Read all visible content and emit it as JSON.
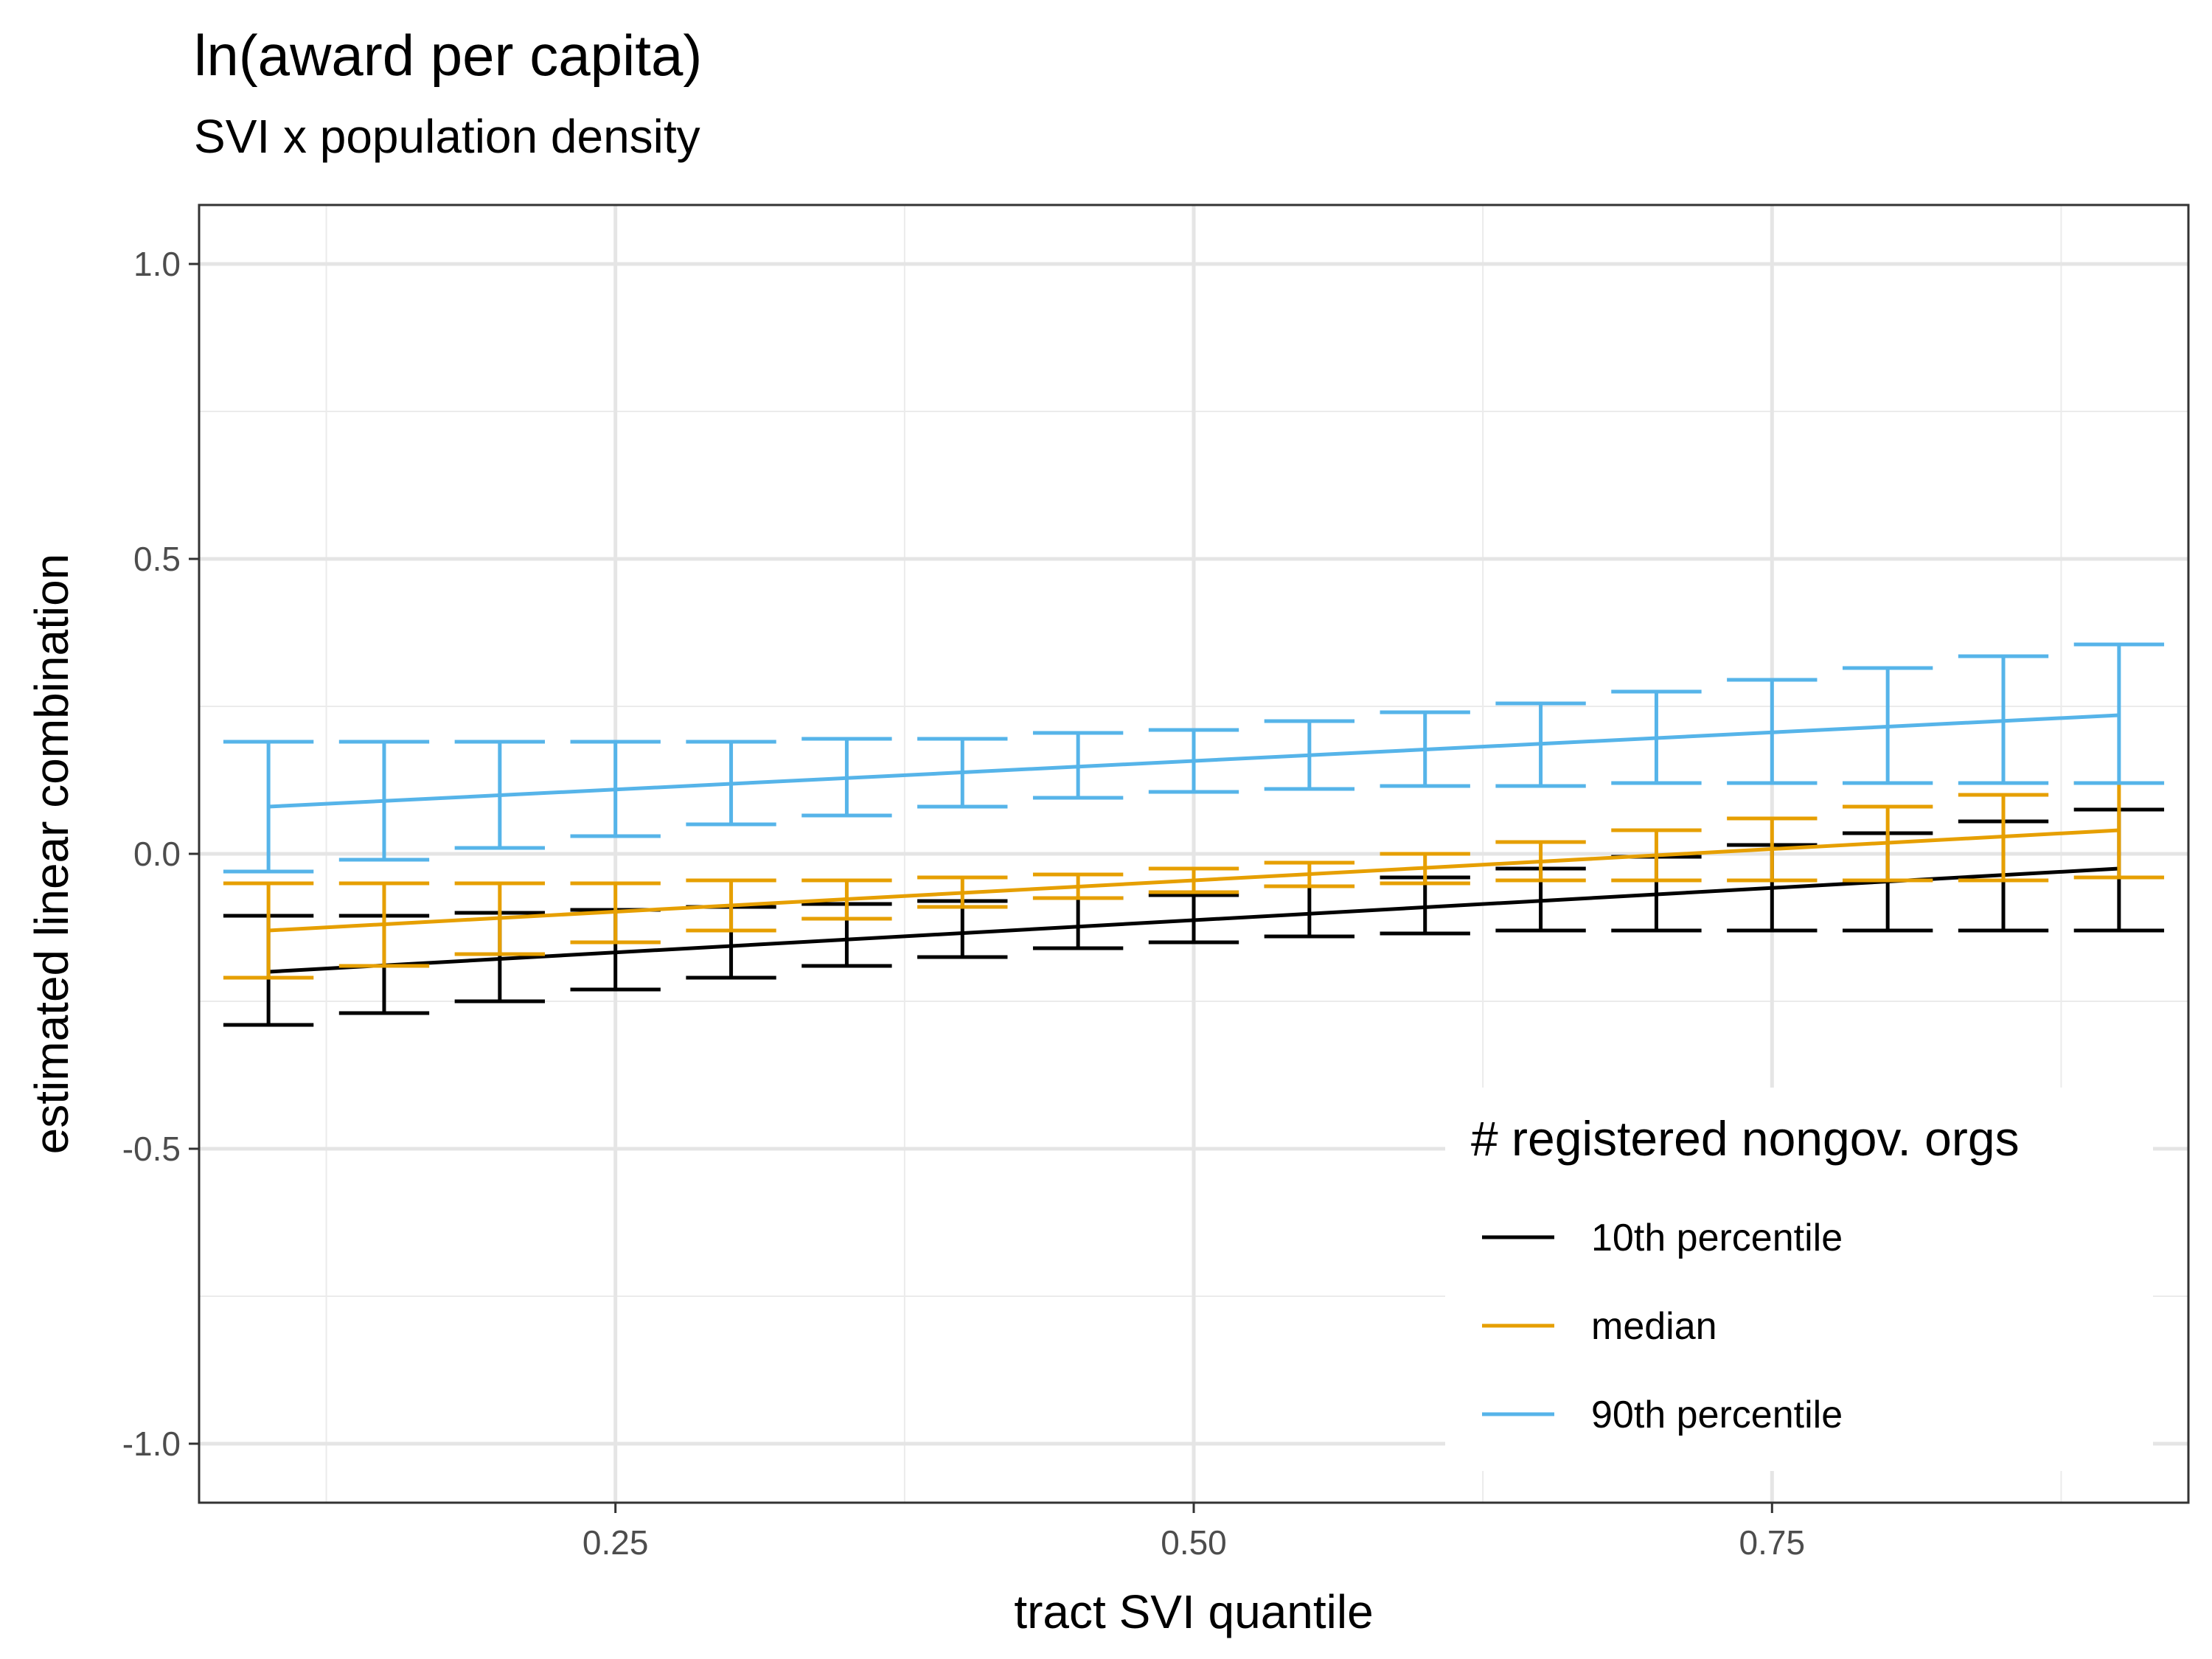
{
  "chart_data": {
    "type": "line",
    "title": "ln(award per capita)",
    "subtitle": "SVI x population density",
    "xlabel": "tract SVI quantile",
    "ylabel": "estimated linear combination",
    "xlim": [
      0.07,
      0.93
    ],
    "ylim": [
      -1.1,
      1.1
    ],
    "x_ticks": [
      0.25,
      0.5,
      0.75
    ],
    "x_tick_labels": [
      "0.25",
      "0.50",
      "0.75"
    ],
    "y_ticks": [
      -1.0,
      -0.5,
      0.0,
      0.5,
      1.0
    ],
    "y_tick_labels": [
      "-1.0",
      "-0.5",
      "0.0",
      "0.5",
      "1.0"
    ],
    "grid": true,
    "legend": {
      "title": "# registered nongov. orgs",
      "position": "bottom-right"
    },
    "x": [
      0.1,
      0.15,
      0.2,
      0.25,
      0.3,
      0.35,
      0.4,
      0.45,
      0.5,
      0.55,
      0.6,
      0.65,
      0.7,
      0.75,
      0.8,
      0.85,
      0.9
    ],
    "series": [
      {
        "name": "10th percentile",
        "color": "#000000",
        "line": [
          -0.2,
          -0.025
        ],
        "lower": [
          -0.29,
          -0.27,
          -0.25,
          -0.23,
          -0.21,
          -0.19,
          -0.175,
          -0.16,
          -0.15,
          -0.14,
          -0.135,
          -0.13,
          -0.13,
          -0.13,
          -0.13,
          -0.13,
          -0.13
        ],
        "upper": [
          -0.105,
          -0.105,
          -0.1,
          -0.095,
          -0.09,
          -0.085,
          -0.08,
          -0.075,
          -0.07,
          -0.055,
          -0.04,
          -0.025,
          -0.005,
          0.015,
          0.035,
          0.055,
          0.075
        ]
      },
      {
        "name": "median",
        "color": "#E69F00",
        "line": [
          -0.13,
          0.04
        ],
        "lower": [
          -0.21,
          -0.19,
          -0.17,
          -0.15,
          -0.13,
          -0.11,
          -0.09,
          -0.075,
          -0.065,
          -0.055,
          -0.05,
          -0.045,
          -0.045,
          -0.045,
          -0.045,
          -0.045,
          -0.04
        ],
        "upper": [
          -0.05,
          -0.05,
          -0.05,
          -0.05,
          -0.045,
          -0.045,
          -0.04,
          -0.035,
          -0.025,
          -0.015,
          0.0,
          0.02,
          0.04,
          0.06,
          0.08,
          0.1,
          0.12
        ]
      },
      {
        "name": "90th percentile",
        "color": "#56B4E9",
        "line": [
          0.08,
          0.235
        ],
        "lower": [
          -0.03,
          -0.01,
          0.01,
          0.03,
          0.05,
          0.065,
          0.08,
          0.095,
          0.105,
          0.11,
          0.115,
          0.115,
          0.12,
          0.12,
          0.12,
          0.12,
          0.12
        ],
        "upper": [
          0.19,
          0.19,
          0.19,
          0.19,
          0.19,
          0.195,
          0.195,
          0.205,
          0.21,
          0.225,
          0.24,
          0.255,
          0.275,
          0.295,
          0.315,
          0.335,
          0.355
        ]
      }
    ]
  }
}
